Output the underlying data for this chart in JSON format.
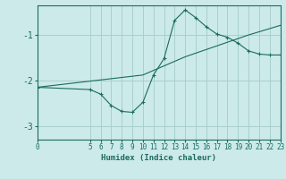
{
  "xlabel": "Humidex (Indice chaleur)",
  "ylabel": "",
  "bg_color": "#cceaea",
  "line_color": "#1a6b60",
  "grid_color": "#aacfcf",
  "curve1_x": [
    0,
    5,
    6,
    7,
    8,
    9,
    10,
    11,
    12,
    13,
    14,
    15,
    16,
    17,
    18,
    19,
    20,
    21,
    22,
    23
  ],
  "curve1_y": [
    -2.15,
    -2.2,
    -2.3,
    -2.55,
    -2.68,
    -2.7,
    -2.48,
    -1.88,
    -1.52,
    -0.68,
    -0.45,
    -0.62,
    -0.82,
    -0.98,
    -1.05,
    -1.18,
    -1.35,
    -1.42,
    -1.44,
    -1.44
  ],
  "curve2_x": [
    0,
    10,
    11,
    12,
    13,
    14,
    15,
    16,
    17,
    18,
    19,
    20,
    21,
    22,
    23
  ],
  "curve2_y": [
    -2.15,
    -1.88,
    -1.78,
    -1.68,
    -1.58,
    -1.48,
    -1.4,
    -1.32,
    -1.24,
    -1.16,
    -1.08,
    -1.0,
    -0.93,
    -0.86,
    -0.79
  ],
  "xlim": [
    0,
    23
  ],
  "ylim": [
    -3.3,
    -0.35
  ],
  "yticks": [
    -3,
    -2,
    -1
  ],
  "xticks": [
    0,
    5,
    6,
    7,
    8,
    9,
    10,
    11,
    12,
    13,
    14,
    15,
    16,
    17,
    18,
    19,
    20,
    21,
    22,
    23
  ],
  "marker": "+"
}
